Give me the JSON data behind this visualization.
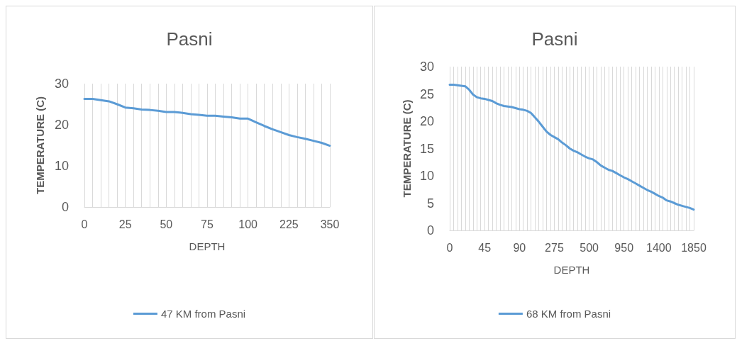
{
  "chart_data": [
    {
      "type": "line",
      "title": "Pasni",
      "xlabel": "DEPTH",
      "ylabel": "TEMPERATURE (C)",
      "categories": [
        "0",
        null,
        null,
        null,
        null,
        "25",
        null,
        null,
        null,
        null,
        "50",
        null,
        null,
        null,
        null,
        "75",
        null,
        null,
        null,
        null,
        "100",
        null,
        null,
        null,
        null,
        "225",
        null,
        null,
        null,
        null,
        "350"
      ],
      "series": [
        {
          "name": "47 KM from Pasni",
          "color": "#5b9bd5",
          "values": [
            26.3,
            26.3,
            26.0,
            25.7,
            25.0,
            24.2,
            24.0,
            23.7,
            23.6,
            23.4,
            23.1,
            23.1,
            22.9,
            22.6,
            22.4,
            22.2,
            22.2,
            22.0,
            21.8,
            21.5,
            21.5,
            20.6,
            19.7,
            18.9,
            18.2,
            17.5,
            17.0,
            16.6,
            16.1,
            15.6,
            14.9
          ]
        }
      ],
      "ylim": [
        0,
        30
      ],
      "yticks": [
        0,
        10,
        20,
        30
      ],
      "grid": "x",
      "legend": "bottom",
      "marker": "none"
    },
    {
      "type": "line",
      "title": "Pasni",
      "xlabel": "DEPTH",
      "ylabel": "TEMPERATURE (C)",
      "categories": [
        "0",
        null,
        null,
        null,
        null,
        null,
        null,
        null,
        null,
        "45",
        null,
        null,
        null,
        null,
        null,
        null,
        null,
        null,
        "90",
        null,
        null,
        null,
        null,
        null,
        null,
        null,
        null,
        "275",
        null,
        null,
        null,
        null,
        null,
        null,
        null,
        null,
        "500",
        null,
        null,
        null,
        null,
        null,
        null,
        null,
        null,
        "950",
        null,
        null,
        null,
        null,
        null,
        null,
        null,
        null,
        "1400",
        null,
        null,
        null,
        null,
        null,
        null,
        null,
        null,
        "1850"
      ],
      "series": [
        {
          "name": "68 KM from Pasni",
          "color": "#5b9bd5",
          "values": [
            26.7,
            26.7,
            26.6,
            26.5,
            26.4,
            25.8,
            24.9,
            24.4,
            24.2,
            24.1,
            23.9,
            23.7,
            23.3,
            23.0,
            22.8,
            22.7,
            22.6,
            22.4,
            22.2,
            22.1,
            21.9,
            21.5,
            20.7,
            19.9,
            19.0,
            18.1,
            17.5,
            17.1,
            16.7,
            16.1,
            15.6,
            15.0,
            14.6,
            14.3,
            13.9,
            13.5,
            13.2,
            13.0,
            12.5,
            11.9,
            11.5,
            11.1,
            10.9,
            10.5,
            10.1,
            9.7,
            9.4,
            9.0,
            8.6,
            8.2,
            7.8,
            7.4,
            7.1,
            6.7,
            6.3,
            6.0,
            5.5,
            5.3,
            5.0,
            4.7,
            4.5,
            4.3,
            4.1,
            3.8
          ]
        }
      ],
      "ylim": [
        0,
        30
      ],
      "yticks": [
        0,
        5,
        10,
        15,
        20,
        25,
        30
      ],
      "grid": "x",
      "legend": "bottom",
      "marker": "none"
    }
  ]
}
